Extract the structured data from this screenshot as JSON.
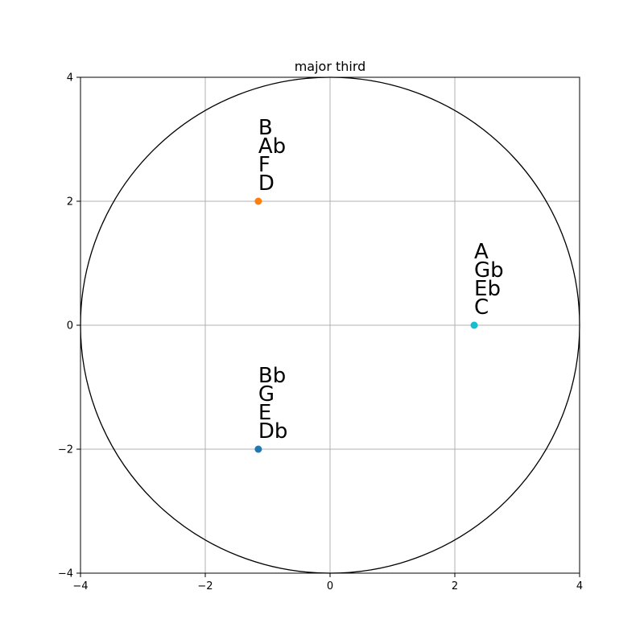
{
  "chart_data": {
    "type": "scatter",
    "title": "major third",
    "xlabel": "",
    "ylabel": "",
    "xlim": [
      -4,
      4
    ],
    "ylim": [
      -4,
      4
    ],
    "xticks": [
      -4,
      -2,
      0,
      2,
      4
    ],
    "yticks": [
      -4,
      -2,
      0,
      2,
      4
    ],
    "xtick_labels": [
      "−4",
      "−2",
      "0",
      "2",
      "4"
    ],
    "ytick_labels": [
      "−4",
      "−2",
      "0",
      "2",
      "4"
    ],
    "grid": true,
    "circle": {
      "center": [
        0,
        0
      ],
      "radius": 4,
      "color": "#000000"
    },
    "points": [
      {
        "x": 2.31,
        "y": 0,
        "color": "#17becf",
        "labels": [
          "C",
          "Eb",
          "Gb",
          "A"
        ]
      },
      {
        "x": -1.15,
        "y": 2,
        "color": "#ff7f0e",
        "labels": [
          "D",
          "F",
          "Ab",
          "B"
        ]
      },
      {
        "x": -1.15,
        "y": -2,
        "color": "#1f77b4",
        "labels": [
          "Db",
          "E",
          "G",
          "Bb"
        ]
      }
    ]
  },
  "colors": {
    "grid": "#b0b0b0",
    "axes": "#000000",
    "background": "#ffffff"
  }
}
